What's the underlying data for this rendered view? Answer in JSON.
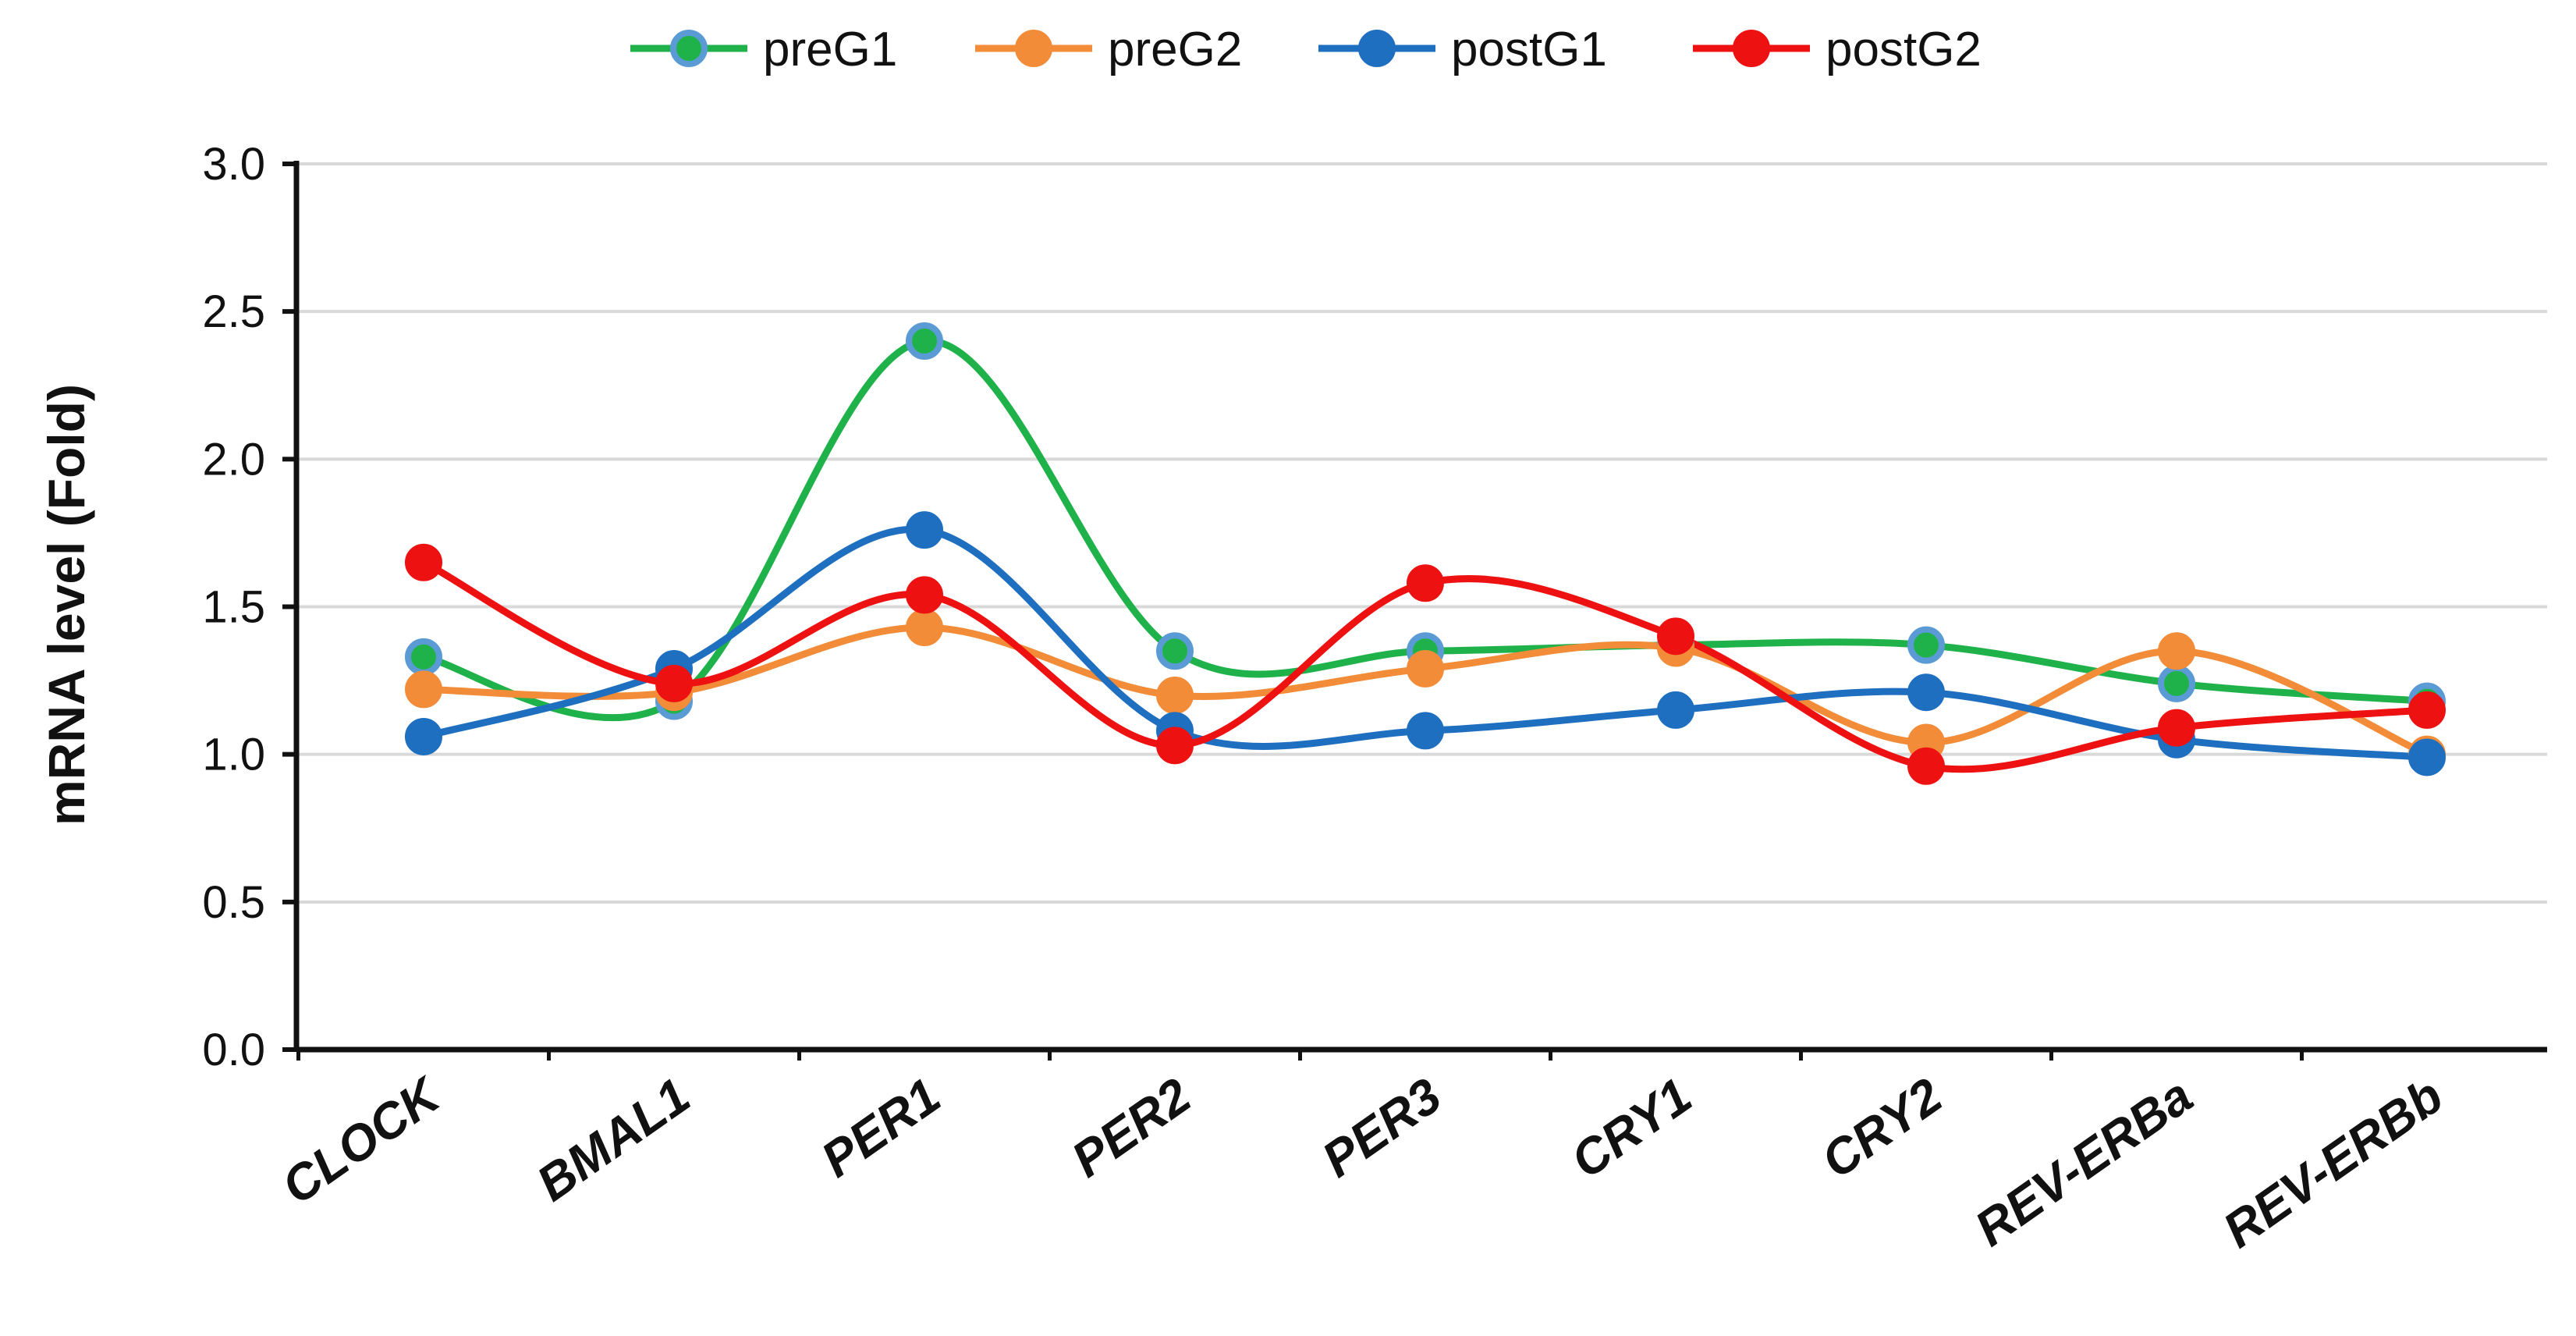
{
  "chart_data": {
    "type": "line",
    "smooth": true,
    "title": "",
    "xlabel": "",
    "ylabel": "mRNA level (Fold)",
    "ylim": [
      0,
      3.0
    ],
    "yticks": [
      "0.0",
      "0.5",
      "1.0",
      "1.5",
      "2.0",
      "2.5",
      "3.0"
    ],
    "grid": true,
    "legend_position": "top-center",
    "categories": [
      "CLOCK",
      "BMAL1",
      "PER1",
      "PER2",
      "PER3",
      "CRY1",
      "CRY2",
      "REV-ERBa",
      "REV-ERBb"
    ],
    "series": [
      {
        "name": "preG1",
        "color": "#1fb24a",
        "marker_color": "#5b9bd5",
        "values": [
          1.33,
          1.18,
          2.4,
          1.35,
          1.35,
          1.37,
          1.37,
          1.24,
          1.18
        ]
      },
      {
        "name": "preG2",
        "color": "#f28c38",
        "marker_color": "#f28c38",
        "values": [
          1.22,
          1.21,
          1.43,
          1.2,
          1.29,
          1.36,
          1.04,
          1.35,
          1.0
        ]
      },
      {
        "name": "postG1",
        "color": "#1f6fc0",
        "marker_color": "#1f6fc0",
        "values": [
          1.06,
          1.29,
          1.76,
          1.08,
          1.08,
          1.15,
          1.21,
          1.05,
          0.99
        ]
      },
      {
        "name": "postG2",
        "color": "#ee1111",
        "marker_color": "#ee1111",
        "values": [
          1.65,
          1.24,
          1.54,
          1.03,
          1.58,
          1.4,
          0.96,
          1.09,
          1.15
        ]
      }
    ]
  }
}
